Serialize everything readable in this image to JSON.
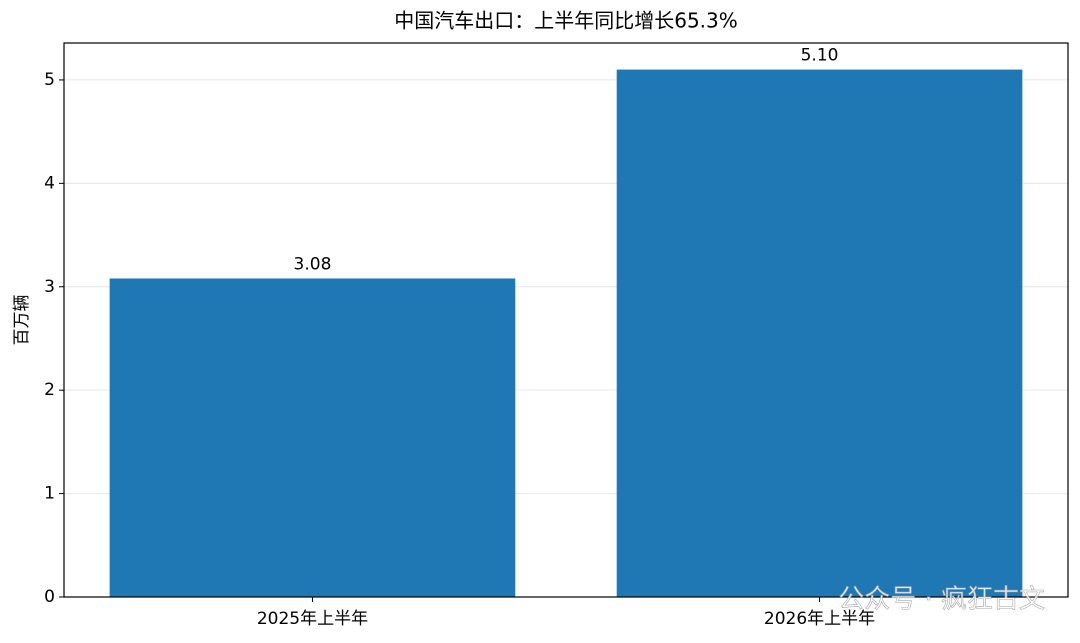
{
  "chart_data": {
    "type": "bar",
    "title": "中国汽车出口：上半年同比增长65.3%",
    "ylabel": "百万辆",
    "categories": [
      "2025年上半年",
      "2026年上半年"
    ],
    "values": [
      3.08,
      5.1
    ],
    "value_labels": [
      "3.08",
      "5.10"
    ],
    "color": "#1f77b4",
    "ylim": [
      0,
      5.357
    ],
    "yticks": [
      0,
      1,
      2,
      3,
      4,
      5
    ],
    "grid": true,
    "watermark": "公众号 · 疯狂古文"
  }
}
